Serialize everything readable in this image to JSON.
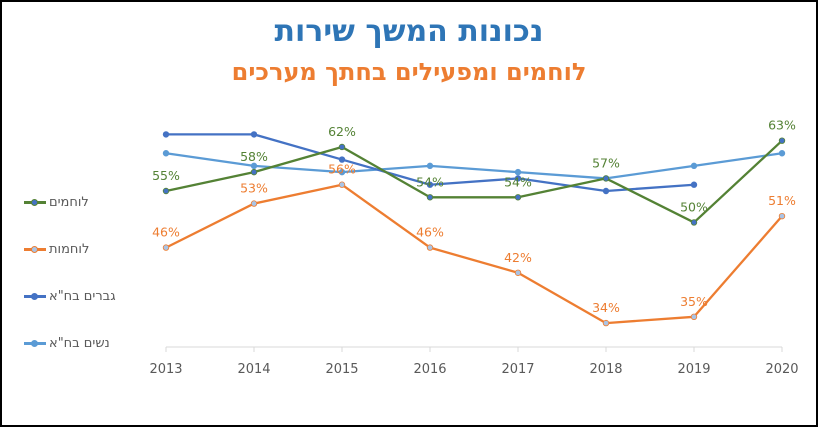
{
  "chart_data": {
    "type": "line",
    "title": "נכונות המשך שירות",
    "subtitle": "לוחמים ומפעילים בחתך מערכים",
    "xlabel": "",
    "ylabel": "",
    "categories": [
      "2013",
      "2014",
      "2015",
      "2016",
      "2017",
      "2018",
      "2019",
      "2020"
    ],
    "ylim": [
      30,
      66
    ],
    "grid": false,
    "legend_position": "left",
    "series": [
      {
        "name": "לוחמים",
        "color": "#548235",
        "marker_fill": "#4472c4",
        "values": [
          55,
          58,
          62,
          54,
          54,
          57,
          50,
          63
        ],
        "labels": [
          "55%",
          "58%",
          "62%",
          "54%",
          "54%",
          "57%",
          "50%",
          "63%"
        ]
      },
      {
        "name": "לוחמות",
        "color": "#ed7d31",
        "marker_fill": "#a9c4e6",
        "values": [
          46,
          53,
          56,
          46,
          42,
          34,
          35,
          51
        ],
        "labels": [
          "46%",
          "53%",
          "56%",
          "46%",
          "42%",
          "34%",
          "35%",
          "51%"
        ]
      },
      {
        "name": "גברים בח\"א",
        "color": "#4472c4",
        "marker_fill": "#4472c4",
        "values": [
          64,
          64,
          60,
          56,
          57,
          55,
          56,
          null
        ],
        "labels": []
      },
      {
        "name": "נשים בח\"א",
        "color": "#5b9bd5",
        "marker_fill": "#5b9bd5",
        "values": [
          61,
          59,
          58,
          59,
          58,
          57,
          59,
          61
        ],
        "labels": []
      }
    ]
  }
}
